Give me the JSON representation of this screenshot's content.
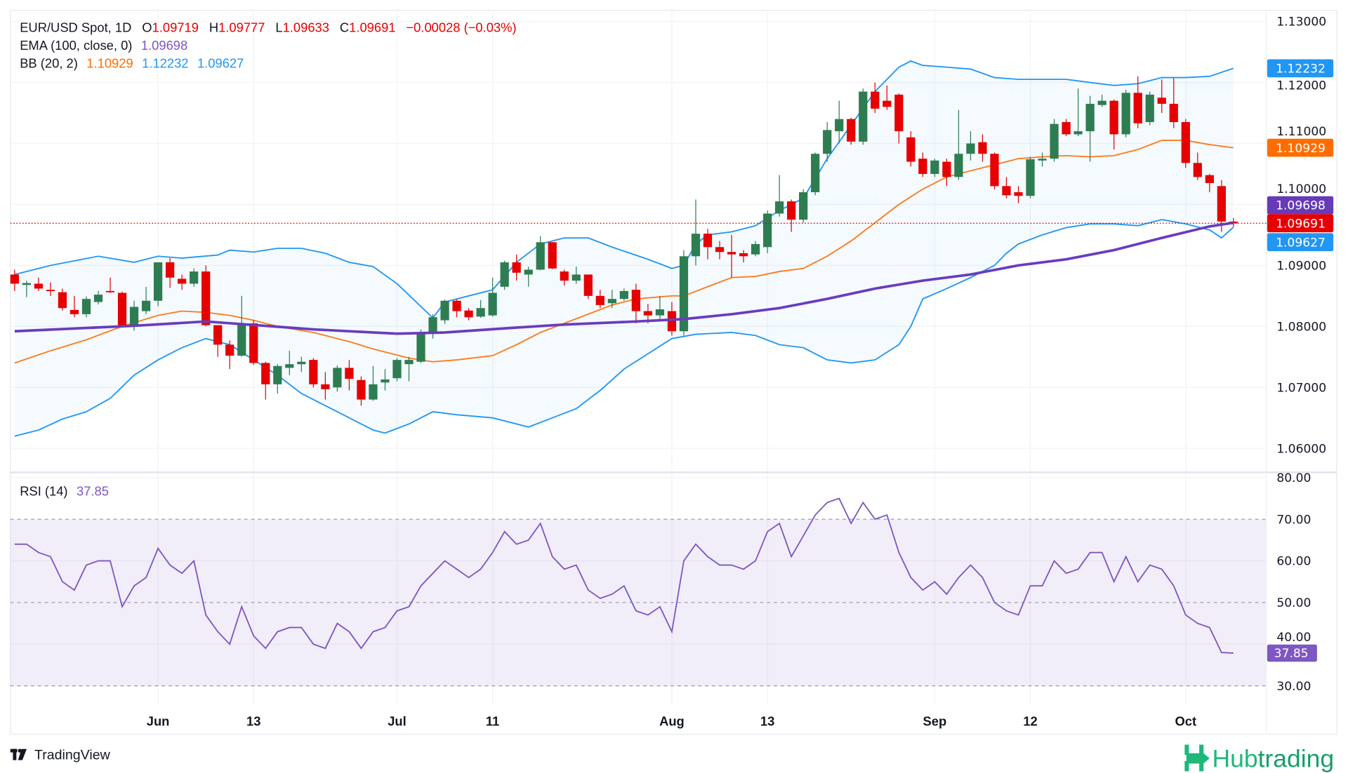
{
  "legend": {
    "symbol": "EUR/USD Spot, 1D",
    "o_label": "O",
    "o": "1.09719",
    "h_label": "H",
    "h": "1.09777",
    "l_label": "L",
    "l": "1.09633",
    "c_label": "C",
    "c": "1.09691",
    "change": "−0.00028 (−0.03%)",
    "ema_label": "EMA (100, close, 0)",
    "ema": "1.09698",
    "bb_label": "BB (20, 2)",
    "bb_mid": "1.10929",
    "bb_upper": "1.12232",
    "bb_lower": "1.09627",
    "rsi_label": "RSI (14)",
    "rsi": "37.85"
  },
  "colors": {
    "up": "#2e7d52",
    "down": "#e60000",
    "ema": "#6a3bbf",
    "bb_mid": "#ff7a1a",
    "bb_band": "#2196f3",
    "rsi": "#7e57c2",
    "last": "#e60000"
  },
  "footer": {
    "tradingview": "TradingView",
    "brand_a": "Hub",
    "brand_b": "trading"
  },
  "chart_data": {
    "type": "candlestick",
    "title": "EUR/USD Spot, 1D",
    "x_ticks": [
      {
        "i": 12,
        "label": "Jun",
        "major": true
      },
      {
        "i": 20,
        "label": "13"
      },
      {
        "i": 32,
        "label": "Jul",
        "major": true
      },
      {
        "i": 40,
        "label": "11"
      },
      {
        "i": 55,
        "label": "Aug",
        "major": true
      },
      {
        "i": 63,
        "label": "13"
      },
      {
        "i": 77,
        "label": "Sep",
        "major": true
      },
      {
        "i": 85,
        "label": "12"
      },
      {
        "i": 98,
        "label": "Oct",
        "major": true
      }
    ],
    "price_ticks": [
      "1.13000",
      "1.12000",
      "1.11000",
      "1.10000",
      "1.09000",
      "1.08000",
      "1.07000",
      "1.06000"
    ],
    "price_range": [
      1.0555,
      1.1315
    ],
    "rsi_ticks": [
      "80.00",
      "70.00",
      "60.00",
      "50.00",
      "40.00",
      "30.00"
    ],
    "rsi_band": [
      30,
      70
    ],
    "ohlc": [
      [
        1.0885,
        1.0893,
        1.0858,
        1.087
      ],
      [
        1.0868,
        1.0875,
        1.0848,
        1.0871
      ],
      [
        1.087,
        1.088,
        1.0858,
        1.0862
      ],
      [
        1.086,
        1.0872,
        1.085,
        1.0858
      ],
      [
        1.0856,
        1.0862,
        1.0826,
        1.083
      ],
      [
        1.0827,
        1.085,
        1.0815,
        1.082
      ],
      [
        1.082,
        1.0849,
        1.0815,
        1.0845
      ],
      [
        1.084,
        1.0858,
        1.0836,
        1.0852
      ],
      [
        1.0858,
        1.088,
        1.0855,
        1.0856
      ],
      [
        1.0855,
        1.0857,
        1.0798,
        1.08
      ],
      [
        1.0802,
        1.0842,
        1.0793,
        1.0832
      ],
      [
        1.0825,
        1.0865,
        1.082,
        1.0842
      ],
      [
        1.0842,
        1.0905,
        1.0833,
        1.0905
      ],
      [
        1.0905,
        1.0912,
        1.0863,
        1.088
      ],
      [
        1.0878,
        1.0885,
        1.086,
        1.087
      ],
      [
        1.087,
        1.0895,
        1.0865,
        1.089
      ],
      [
        1.089,
        1.09,
        1.08,
        1.0802
      ],
      [
        1.0802,
        1.0802,
        1.075,
        1.077
      ],
      [
        1.077,
        1.0777,
        1.073,
        1.0752
      ],
      [
        1.0752,
        1.085,
        1.075,
        1.0805
      ],
      [
        1.0805,
        1.081,
        1.0737,
        1.074
      ],
      [
        1.074,
        1.0742,
        1.068,
        1.0705
      ],
      [
        1.0705,
        1.0738,
        1.069,
        1.0735
      ],
      [
        1.0732,
        1.076,
        1.072,
        1.0738
      ],
      [
        1.0738,
        1.075,
        1.0725,
        1.0742
      ],
      [
        1.0745,
        1.0748,
        1.07,
        1.0705
      ],
      [
        1.0705,
        1.0725,
        1.068,
        1.0697
      ],
      [
        1.07,
        1.0736,
        1.0693,
        1.0732
      ],
      [
        1.0732,
        1.0745,
        1.0695,
        1.0714
      ],
      [
        1.0712,
        1.0718,
        1.067,
        1.068
      ],
      [
        1.068,
        1.0735,
        1.0678,
        1.0705
      ],
      [
        1.0708,
        1.073,
        1.0695,
        1.0713
      ],
      [
        1.0715,
        1.0748,
        1.071,
        1.0745
      ],
      [
        1.0738,
        1.075,
        1.071,
        1.0745
      ],
      [
        1.0742,
        1.0795,
        1.074,
        1.0788
      ],
      [
        1.0788,
        1.082,
        1.078,
        1.0815
      ],
      [
        1.081,
        1.0844,
        1.0804,
        1.0842
      ],
      [
        1.0842,
        1.0844,
        1.0815,
        1.0825
      ],
      [
        1.0826,
        1.083,
        1.081,
        1.0815
      ],
      [
        1.0816,
        1.0843,
        1.0814,
        1.083
      ],
      [
        1.0818,
        1.088,
        1.0816,
        1.0855
      ],
      [
        1.0865,
        1.0908,
        1.086,
        1.0905
      ],
      [
        1.0905,
        1.0918,
        1.0875,
        1.0888
      ],
      [
        1.0885,
        1.0898,
        1.0865,
        1.0893
      ],
      [
        1.0893,
        1.0948,
        1.0892,
        1.0938
      ],
      [
        1.0938,
        1.0938,
        1.0894,
        1.0895
      ],
      [
        1.089,
        1.0893,
        1.0867,
        1.0875
      ],
      [
        1.0875,
        1.0898,
        1.087,
        1.0885
      ],
      [
        1.0885,
        1.0885,
        1.0845,
        1.085
      ],
      [
        1.085,
        1.086,
        1.083,
        1.0835
      ],
      [
        1.0838,
        1.086,
        1.083,
        1.0845
      ],
      [
        1.0845,
        1.0862,
        1.0842,
        1.0858
      ],
      [
        1.086,
        1.087,
        1.0805,
        1.0825
      ],
      [
        1.0825,
        1.0837,
        1.0805,
        1.0818
      ],
      [
        1.0818,
        1.085,
        1.081,
        1.0828
      ],
      [
        1.0825,
        1.084,
        1.0785,
        1.0792
      ],
      [
        1.0792,
        1.0925,
        1.0785,
        1.0915
      ],
      [
        1.0915,
        1.1008,
        1.09,
        1.0952
      ],
      [
        1.0952,
        1.096,
        1.091,
        1.093
      ],
      [
        1.093,
        1.094,
        1.091,
        1.0922
      ],
      [
        1.0922,
        1.095,
        1.088,
        1.0918
      ],
      [
        1.092,
        1.0925,
        1.0905,
        1.0915
      ],
      [
        1.0918,
        1.094,
        1.0915,
        1.0935
      ],
      [
        1.093,
        1.099,
        1.092,
        1.0985
      ],
      [
        1.0985,
        1.1048,
        1.098,
        1.1005
      ],
      [
        1.1005,
        1.1008,
        1.0955,
        1.0975
      ],
      [
        1.0975,
        1.1025,
        1.097,
        1.102
      ],
      [
        1.102,
        1.1085,
        1.1015,
        1.1083
      ],
      [
        1.1083,
        1.1135,
        1.107,
        1.1122
      ],
      [
        1.112,
        1.117,
        1.11,
        1.114
      ],
      [
        1.114,
        1.1142,
        1.1098,
        1.1103
      ],
      [
        1.1103,
        1.119,
        1.1098,
        1.1185
      ],
      [
        1.1185,
        1.12,
        1.115,
        1.1157
      ],
      [
        1.117,
        1.1195,
        1.1155,
        1.116
      ],
      [
        1.118,
        1.1182,
        1.11,
        1.112
      ],
      [
        1.111,
        1.112,
        1.1062,
        1.107
      ],
      [
        1.1075,
        1.1085,
        1.1045,
        1.105
      ],
      [
        1.105,
        1.1075,
        1.1045,
        1.1072
      ],
      [
        1.107,
        1.1075,
        1.103,
        1.1045
      ],
      [
        1.1045,
        1.1155,
        1.104,
        1.1083
      ],
      [
        1.1083,
        1.112,
        1.1072,
        1.11
      ],
      [
        1.1102,
        1.1115,
        1.107,
        1.1083
      ],
      [
        1.1083,
        1.1085,
        1.1025,
        1.103
      ],
      [
        1.103,
        1.1045,
        1.101,
        1.1015
      ],
      [
        1.102,
        1.103,
        1.1002,
        1.1014
      ],
      [
        1.1014,
        1.1078,
        1.101,
        1.1074
      ],
      [
        1.1072,
        1.1085,
        1.1062,
        1.1075
      ],
      [
        1.1075,
        1.114,
        1.107,
        1.1132
      ],
      [
        1.1135,
        1.114,
        1.1112,
        1.1115
      ],
      [
        1.1115,
        1.119,
        1.1112,
        1.112
      ],
      [
        1.112,
        1.1178,
        1.107,
        1.1165
      ],
      [
        1.1163,
        1.118,
        1.116,
        1.117
      ],
      [
        1.117,
        1.1172,
        1.109,
        1.1115
      ],
      [
        1.1115,
        1.1188,
        1.111,
        1.1183
      ],
      [
        1.1183,
        1.121,
        1.1125,
        1.1133
      ],
      [
        1.1135,
        1.1185,
        1.113,
        1.118
      ],
      [
        1.1175,
        1.1205,
        1.115,
        1.1165
      ],
      [
        1.1165,
        1.1207,
        1.1125,
        1.1135
      ],
      [
        1.1135,
        1.114,
        1.106,
        1.1068
      ],
      [
        1.1068,
        1.1085,
        1.104,
        1.1045
      ],
      [
        1.1048,
        1.105,
        1.102,
        1.1035
      ],
      [
        1.103,
        1.104,
        1.0955,
        1.0972
      ],
      [
        1.09719,
        1.09777,
        1.09633,
        1.09691
      ]
    ],
    "bb_upper": [
      [
        0,
        1.0885
      ],
      [
        3,
        1.09
      ],
      [
        7,
        1.0915
      ],
      [
        10,
        1.0905
      ],
      [
        12,
        1.0915
      ],
      [
        14,
        1.0912
      ],
      [
        17,
        1.0917
      ],
      [
        18,
        1.0925
      ],
      [
        20,
        1.0922
      ],
      [
        22,
        1.0928
      ],
      [
        24,
        1.0928
      ],
      [
        26,
        1.092
      ],
      [
        28,
        1.0905
      ],
      [
        30,
        1.0898
      ],
      [
        32,
        1.087
      ],
      [
        35,
        1.0814
      ],
      [
        36,
        1.084
      ],
      [
        38,
        1.085
      ],
      [
        40,
        1.086
      ],
      [
        42,
        1.0905
      ],
      [
        44,
        1.0935
      ],
      [
        46,
        1.0945
      ],
      [
        48,
        1.0945
      ],
      [
        50,
        1.093
      ],
      [
        53,
        1.091
      ],
      [
        55,
        1.0895
      ],
      [
        56,
        1.09
      ],
      [
        57,
        1.0935
      ],
      [
        58,
        1.095
      ],
      [
        60,
        1.0955
      ],
      [
        62,
        1.0965
      ],
      [
        64,
        1.099
      ],
      [
        66,
        1.101
      ],
      [
        68,
        1.1075
      ],
      [
        70,
        1.113
      ],
      [
        72,
        1.1185
      ],
      [
        74,
        1.1225
      ],
      [
        75,
        1.1235
      ],
      [
        76,
        1.1228
      ],
      [
        78,
        1.1225
      ],
      [
        80,
        1.1222
      ],
      [
        82,
        1.1208
      ],
      [
        84,
        1.1205
      ],
      [
        86,
        1.1205
      ],
      [
        88,
        1.1205
      ],
      [
        90,
        1.12
      ],
      [
        92,
        1.1195
      ],
      [
        94,
        1.1198
      ],
      [
        96,
        1.1208
      ],
      [
        98,
        1.1208
      ],
      [
        100,
        1.121
      ],
      [
        102,
        1.12232
      ]
    ],
    "bb_mid": [
      [
        0,
        1.074
      ],
      [
        3,
        1.076
      ],
      [
        6,
        1.0778
      ],
      [
        9,
        1.08
      ],
      [
        12,
        1.0818
      ],
      [
        14,
        1.0825
      ],
      [
        16,
        1.0823
      ],
      [
        18,
        1.0818
      ],
      [
        20,
        1.081
      ],
      [
        22,
        1.08
      ],
      [
        25,
        1.079
      ],
      [
        28,
        1.0775
      ],
      [
        30,
        1.0763
      ],
      [
        33,
        1.0748
      ],
      [
        35,
        1.0742
      ],
      [
        37,
        1.0745
      ],
      [
        40,
        1.0752
      ],
      [
        42,
        1.077
      ],
      [
        44,
        1.079
      ],
      [
        46,
        1.0805
      ],
      [
        48,
        1.082
      ],
      [
        50,
        1.0835
      ],
      [
        52,
        1.0845
      ],
      [
        55,
        1.085
      ],
      [
        56,
        1.085
      ],
      [
        58,
        1.0865
      ],
      [
        60,
        1.088
      ],
      [
        62,
        1.0882
      ],
      [
        64,
        1.089
      ],
      [
        66,
        1.0895
      ],
      [
        68,
        1.0915
      ],
      [
        70,
        1.094
      ],
      [
        72,
        1.097
      ],
      [
        74,
        1.1
      ],
      [
        76,
        1.1025
      ],
      [
        78,
        1.1045
      ],
      [
        80,
        1.1055
      ],
      [
        82,
        1.1065
      ],
      [
        84,
        1.1075
      ],
      [
        86,
        1.1078
      ],
      [
        88,
        1.108
      ],
      [
        90,
        1.1078
      ],
      [
        92,
        1.108
      ],
      [
        94,
        1.109
      ],
      [
        96,
        1.1105
      ],
      [
        98,
        1.1105
      ],
      [
        100,
        1.1098
      ],
      [
        102,
        1.10929
      ]
    ],
    "bb_lower": [
      [
        0,
        1.062
      ],
      [
        2,
        1.063
      ],
      [
        4,
        1.0648
      ],
      [
        6,
        1.066
      ],
      [
        8,
        1.0682
      ],
      [
        10,
        1.072
      ],
      [
        12,
        1.0745
      ],
      [
        14,
        1.0765
      ],
      [
        16,
        1.078
      ],
      [
        18,
        1.077
      ],
      [
        20,
        1.0745
      ],
      [
        22,
        1.072
      ],
      [
        24,
        1.069
      ],
      [
        26,
        1.067
      ],
      [
        28,
        1.065
      ],
      [
        30,
        1.063
      ],
      [
        31,
        1.0625
      ],
      [
        33,
        1.064
      ],
      [
        35,
        1.066
      ],
      [
        37,
        1.0655
      ],
      [
        40,
        1.065
      ],
      [
        43,
        1.0635
      ],
      [
        45,
        1.065
      ],
      [
        47,
        1.0665
      ],
      [
        49,
        1.0695
      ],
      [
        51,
        1.073
      ],
      [
        53,
        1.0755
      ],
      [
        55,
        1.078
      ],
      [
        57,
        1.0787
      ],
      [
        60,
        1.079
      ],
      [
        62,
        1.0785
      ],
      [
        64,
        1.077
      ],
      [
        66,
        1.0765
      ],
      [
        68,
        1.0745
      ],
      [
        70,
        1.074
      ],
      [
        72,
        1.0745
      ],
      [
        74,
        1.077
      ],
      [
        75,
        1.08
      ],
      [
        76,
        1.0845
      ],
      [
        78,
        1.0862
      ],
      [
        80,
        1.088
      ],
      [
        82,
        1.09
      ],
      [
        83,
        1.092
      ],
      [
        84,
        1.0935
      ],
      [
        86,
        1.095
      ],
      [
        88,
        1.0962
      ],
      [
        90,
        1.0968
      ],
      [
        92,
        1.0968
      ],
      [
        94,
        1.0965
      ],
      [
        96,
        1.0975
      ],
      [
        98,
        1.0968
      ],
      [
        100,
        1.0958
      ],
      [
        101,
        1.0945
      ],
      [
        102,
        1.09627
      ]
    ],
    "ema100": [
      [
        0,
        1.0792
      ],
      [
        10,
        1.0801
      ],
      [
        16,
        1.0808
      ],
      [
        25,
        1.0795
      ],
      [
        32,
        1.0788
      ],
      [
        36,
        1.079
      ],
      [
        42,
        1.0798
      ],
      [
        46,
        1.0803
      ],
      [
        52,
        1.0808
      ],
      [
        56,
        1.0812
      ],
      [
        60,
        1.082
      ],
      [
        64,
        1.083
      ],
      [
        68,
        1.0845
      ],
      [
        72,
        1.0862
      ],
      [
        76,
        1.0875
      ],
      [
        80,
        1.0885
      ],
      [
        84,
        1.09
      ],
      [
        88,
        1.091
      ],
      [
        92,
        1.0925
      ],
      [
        96,
        1.0945
      ],
      [
        100,
        1.0964
      ],
      [
        102,
        1.09698
      ]
    ],
    "rsi": [
      64,
      64,
      62,
      61,
      55,
      53,
      59,
      60,
      60,
      49,
      54,
      56,
      63,
      59,
      57,
      60,
      47,
      43,
      40,
      49,
      42,
      39,
      43,
      44,
      44,
      40,
      39,
      45,
      43,
      39,
      43,
      44,
      48,
      49,
      54,
      57,
      60,
      58,
      56,
      58,
      62,
      67,
      64,
      65,
      69,
      61,
      58,
      59,
      53,
      51,
      52,
      54,
      48,
      47,
      49,
      43,
      60,
      64,
      61,
      59,
      59,
      58,
      60,
      67,
      69,
      61,
      66,
      71,
      74,
      75,
      69,
      74,
      70,
      71,
      62,
      56,
      53,
      55,
      52,
      56,
      59,
      56,
      50,
      48,
      47,
      54,
      54,
      60,
      57,
      58,
      62,
      62,
      55,
      61,
      55,
      59,
      58,
      54,
      47,
      45,
      44,
      38,
      37.85
    ],
    "badges": [
      {
        "value": 1.12232,
        "label": "1.12232",
        "color": "#2196f3"
      },
      {
        "value": 1.10929,
        "label": "1.10929",
        "color": "#ff6d00"
      },
      {
        "value": 1.09698,
        "label": "1.09698",
        "color": "#673ab7"
      },
      {
        "value": 1.09691,
        "label": "1.09691",
        "color": "#e60000"
      },
      {
        "value": 1.09627,
        "label": "1.09627",
        "color": "#2196f3"
      }
    ],
    "rsi_badge": {
      "value": 37.85,
      "label": "37.85",
      "color": "#7e57c2"
    }
  }
}
